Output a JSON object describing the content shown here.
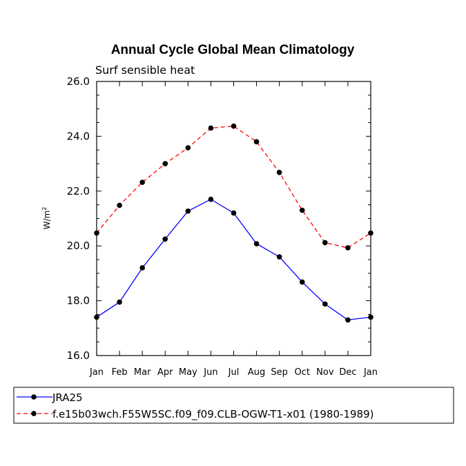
{
  "chart_data": {
    "type": "line",
    "title": "Annual Cycle Global Mean Climatology",
    "subtitle": "Surf sensible heat",
    "xlabel": "",
    "ylabel": "W/m",
    "ylabel_superscript": "2",
    "ylim": [
      16.0,
      26.0
    ],
    "y_ticks": [
      "16.0",
      "18.0",
      "20.0",
      "22.0",
      "24.0",
      "26.0"
    ],
    "y_tick_values": [
      16,
      18,
      20,
      22,
      24,
      26
    ],
    "categories": [
      "Jan",
      "Feb",
      "Mar",
      "Apr",
      "May",
      "Jun",
      "Jul",
      "Aug",
      "Sep",
      "Oct",
      "Nov",
      "Dec",
      "Jan"
    ],
    "series": [
      {
        "name": "JRA25",
        "color": "#0000ff",
        "dash": "solid",
        "values": [
          17.4,
          17.95,
          19.2,
          20.25,
          21.27,
          21.7,
          21.2,
          20.08,
          19.6,
          18.68,
          17.88,
          17.3,
          17.4
        ]
      },
      {
        "name": "f.e15b03wch.F55W5SC.f09_f09.CLB-OGW-T1-x01 (1980-1989)",
        "color": "#ff0000",
        "dash": "dashed",
        "values": [
          20.47,
          21.48,
          22.32,
          23.0,
          23.58,
          24.3,
          24.37,
          23.8,
          22.68,
          21.3,
          20.12,
          19.93,
          20.47
        ]
      }
    ],
    "legend_position": "bottom"
  }
}
